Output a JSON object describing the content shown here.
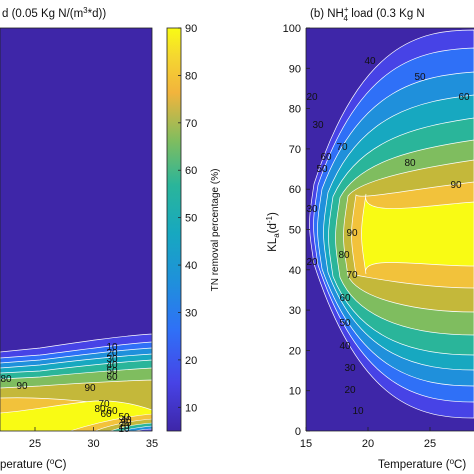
{
  "chart_data": [
    {
      "type": "contour",
      "title": "d (0.05 Kg N/(m",
      "title_sup": "3",
      "title_end": "*d))",
      "xlabel": "perature (",
      "xlabel_sup": "o",
      "xlabel_end": "C)",
      "xlim": [
        15,
        35
      ],
      "ylim": [
        0,
        100
      ],
      "xticks": [
        "25",
        "30",
        "35"
      ],
      "levels": [
        10,
        20,
        30,
        40,
        50,
        60,
        70,
        80,
        90
      ],
      "contour_labels": [
        "10",
        "20",
        "30",
        "40",
        "50",
        "60",
        "80",
        "90",
        "90",
        "80",
        "70",
        "60",
        "60",
        "50",
        "40",
        "30",
        "20",
        "10"
      ]
    },
    {
      "type": "contour",
      "title_pre": "(b) NH",
      "title_sup": "+",
      "title_sub": "4",
      "title_post": " load (0.3 Kg N",
      "xlabel": "Temperature (",
      "xlabel_sup": "o",
      "xlabel_end": "C)",
      "ylabel": "KL",
      "ylabel_sub": "a",
      "ylabel_end": "(d",
      "ylabel_sup": "-1",
      "ylabel_close": ")",
      "xlim": [
        15,
        30
      ],
      "ylim": [
        0,
        100
      ],
      "xticks": [
        "15",
        "20",
        "25"
      ],
      "yticks": [
        "0",
        "10",
        "20",
        "30",
        "40",
        "50",
        "60",
        "70",
        "80",
        "90",
        "100"
      ],
      "levels": [
        10,
        20,
        30,
        40,
        50,
        60,
        70,
        80,
        90
      ],
      "contour_labels": [
        "40",
        "50",
        "60",
        "20",
        "30",
        "70",
        "50",
        "60",
        "80",
        "90",
        "90",
        "30",
        "20",
        "80",
        "70",
        "60",
        "50",
        "40",
        "30",
        "20",
        "10"
      ]
    }
  ],
  "colorbar": {
    "label": "TN removal percentage (%)",
    "ticks": [
      "10",
      "20",
      "30",
      "40",
      "50",
      "60",
      "70",
      "80",
      "90"
    ],
    "range": [
      5,
      90
    ],
    "colors": [
      "#3e26a8",
      "#4743e6",
      "#2f70f7",
      "#1f90db",
      "#17a8c0",
      "#2ab59a",
      "#7fbd5f",
      "#c4b83a",
      "#f2c23b",
      "#f9fb14"
    ]
  }
}
